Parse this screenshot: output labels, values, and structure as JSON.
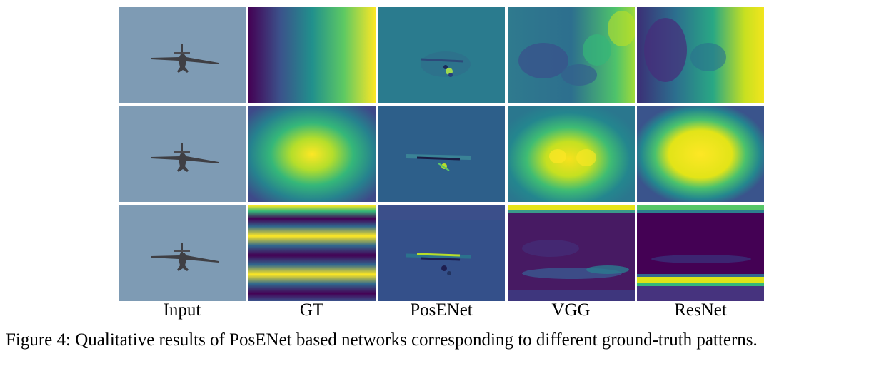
{
  "figure": {
    "columns": [
      "Input",
      "GT",
      "PosENet",
      "VGG",
      "ResNet"
    ],
    "caption": {
      "label": "Figure 4:",
      "text": "Qualitative results of PosENet based networks corresponding to different ground-truth patterns."
    },
    "rows": [
      {
        "pattern": "horizontal-gradient"
      },
      {
        "pattern": "gaussian"
      },
      {
        "pattern": "horizontal-stripes"
      }
    ]
  },
  "colors": {
    "sky": "#7d9ab3",
    "viridis_dark": "#440154",
    "viridis_blue": "#3b528b",
    "viridis_teal": "#21908c",
    "viridis_green": "#5dc963",
    "viridis_yellow": "#fde725"
  }
}
